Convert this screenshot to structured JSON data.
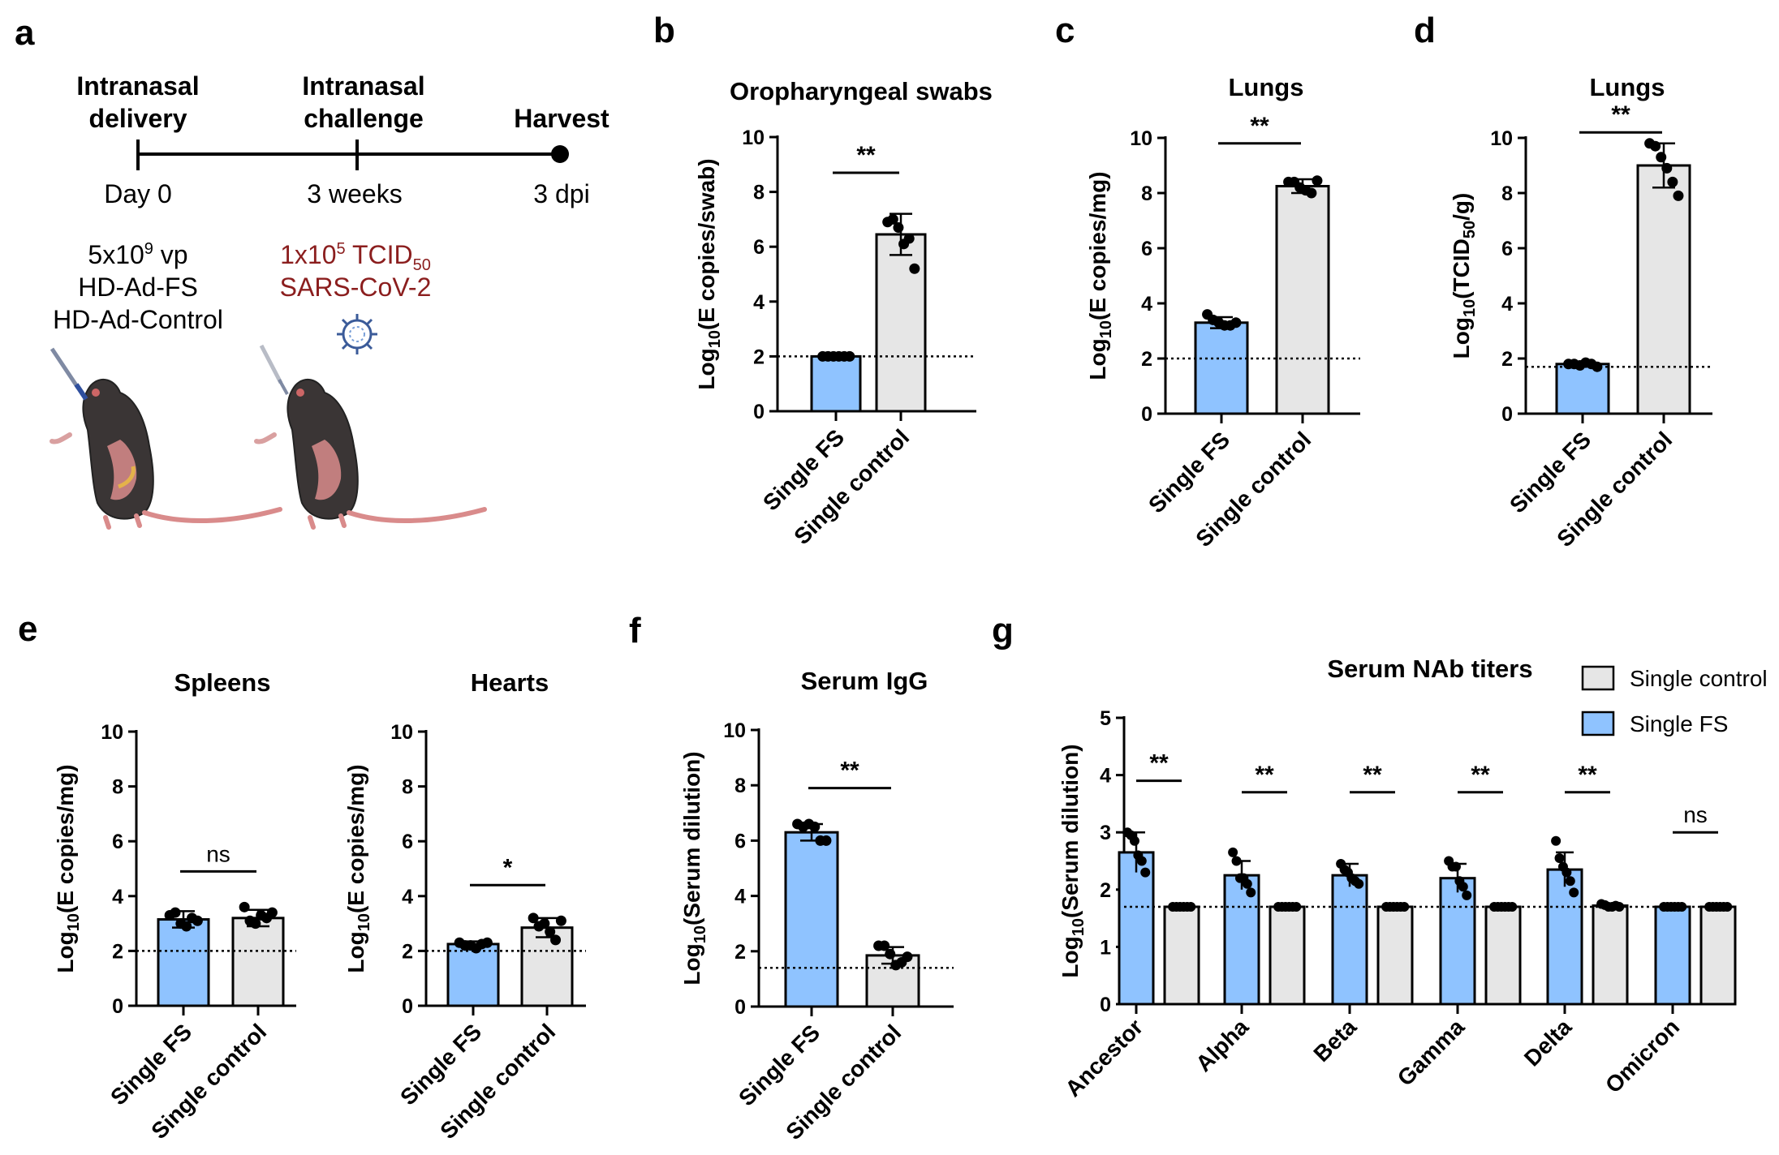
{
  "colors": {
    "fs": "#8fc3ff",
    "control": "#e6e6e6",
    "stroke": "#000000",
    "challenge": "#8b1e1e",
    "virus": "#3b5b99"
  },
  "panel_a": {
    "label": "a",
    "timeline": [
      {
        "top1": "Intranasal",
        "top2": "delivery",
        "time": "Day 0"
      },
      {
        "top1": "Intranasal",
        "top2": "challenge",
        "time": "3 weeks"
      },
      {
        "top1": "",
        "top2": "Harvest",
        "time": "3 dpi"
      }
    ],
    "delivery_lines": [
      {
        "pre": "5x10",
        "sup": "9",
        "post": " vp"
      },
      {
        "pre": "HD-Ad-FS",
        "sup": "",
        "post": ""
      },
      {
        "pre": "HD-Ad-Control",
        "sup": "",
        "post": ""
      }
    ],
    "challenge_lines": [
      {
        "pre": "1x10",
        "sup": "5",
        "post": " TCID",
        "sub": "50"
      },
      {
        "pre": "SARS-CoV-2",
        "sup": "",
        "post": "",
        "sub": ""
      }
    ],
    "icons": [
      "mouse-icon",
      "pipette-icon",
      "virus-icon"
    ]
  },
  "chart_data": [
    {
      "id": "b",
      "label": "b",
      "type": "bar",
      "title": "Oropharyngeal swabs",
      "ylabel": {
        "pre": "Log",
        "sub": "10",
        "post": "(E copies/swab)"
      },
      "ylim": [
        0,
        10
      ],
      "yticks": [
        0,
        2,
        4,
        6,
        8,
        10
      ],
      "categories": [
        "Single FS",
        "Single control"
      ],
      "values": [
        2.0,
        6.45
      ],
      "errors": [
        0.0,
        0.75
      ],
      "points": [
        [
          2,
          2,
          2,
          2,
          2,
          2
        ],
        [
          6.9,
          7.0,
          6.7,
          6.1,
          6.3,
          5.2
        ]
      ],
      "lod": 2.0,
      "annotations": [
        {
          "text": "**",
          "from": 0,
          "to": 1,
          "y": 8.7
        }
      ]
    },
    {
      "id": "c",
      "label": "c",
      "type": "bar",
      "title": "Lungs",
      "ylabel": {
        "pre": "Log",
        "sub": "10",
        "post": "(E copies/mg)"
      },
      "ylim": [
        0,
        10
      ],
      "yticks": [
        0,
        2,
        4,
        6,
        8,
        10
      ],
      "categories": [
        "Single FS",
        "Single control"
      ],
      "values": [
        3.3,
        8.25
      ],
      "errors": [
        0.2,
        0.25
      ],
      "points": [
        [
          3.6,
          3.4,
          3.3,
          3.2,
          3.2,
          3.3
        ],
        [
          8.4,
          8.4,
          8.2,
          8.1,
          8.0,
          8.45
        ]
      ],
      "lod": 2.0,
      "annotations": [
        {
          "text": "**",
          "from": 0,
          "to": 1,
          "y": 9.8
        }
      ]
    },
    {
      "id": "d",
      "label": "d",
      "type": "bar",
      "title": "Lungs",
      "ylabel": {
        "pre": "Log",
        "sub": "10",
        "post": "(TCID",
        "sub2": "50",
        "post2": "/g)"
      },
      "ylim": [
        0,
        10
      ],
      "yticks": [
        0,
        2,
        4,
        6,
        8,
        10
      ],
      "categories": [
        "Single FS",
        "Single control"
      ],
      "values": [
        1.8,
        9.0
      ],
      "errors": [
        0.08,
        0.8
      ],
      "points": [
        [
          1.8,
          1.8,
          1.75,
          1.85,
          1.8,
          1.7
        ],
        [
          9.8,
          9.7,
          9.3,
          8.9,
          8.4,
          7.9
        ]
      ],
      "lod": 1.7,
      "annotations": [
        {
          "text": "**",
          "from": 0,
          "to": 1,
          "y": 10.2
        }
      ]
    },
    {
      "id": "e1",
      "label": "e",
      "type": "bar",
      "title": "Spleens",
      "ylabel": {
        "pre": "Log",
        "sub": "10",
        "post": "(E copies/mg)"
      },
      "ylim": [
        0,
        10
      ],
      "yticks": [
        0,
        2,
        4,
        6,
        8,
        10
      ],
      "categories": [
        "Single FS",
        "Single control"
      ],
      "values": [
        3.15,
        3.2
      ],
      "errors": [
        0.3,
        0.3
      ],
      "points": [
        [
          3.3,
          3.4,
          3.0,
          2.9,
          3.2,
          3.1
        ],
        [
          3.6,
          3.1,
          3.0,
          3.3,
          3.2,
          3.4
        ]
      ],
      "lod": 2.0,
      "annotations": [
        {
          "text": "ns",
          "from": 0,
          "to": 1,
          "y": 4.9
        }
      ]
    },
    {
      "id": "e2",
      "label": "",
      "type": "bar",
      "title": "Hearts",
      "ylabel": {
        "pre": "Log",
        "sub": "10",
        "post": "(E copies/mg)"
      },
      "ylim": [
        0,
        10
      ],
      "yticks": [
        0,
        2,
        4,
        6,
        8,
        10
      ],
      "categories": [
        "Single FS",
        "Single control"
      ],
      "values": [
        2.25,
        2.85
      ],
      "errors": [
        0.1,
        0.35
      ],
      "points": [
        [
          2.3,
          2.2,
          2.2,
          2.1,
          2.25,
          2.3
        ],
        [
          3.2,
          2.9,
          3.0,
          2.7,
          2.4,
          3.1
        ]
      ],
      "lod": 2.0,
      "annotations": [
        {
          "text": "*",
          "from": 0,
          "to": 1,
          "y": 4.4
        }
      ]
    },
    {
      "id": "f",
      "label": "f",
      "type": "bar",
      "title": "Serum IgG",
      "ylabel": {
        "pre": "Log",
        "sub": "10",
        "post": "(Serum dilution)"
      },
      "ylim": [
        0,
        10
      ],
      "yticks": [
        0,
        2,
        4,
        6,
        8,
        10
      ],
      "categories": [
        "Single FS",
        "Single control"
      ],
      "values": [
        6.3,
        1.85
      ],
      "errors": [
        0.3,
        0.3
      ],
      "points": [
        [
          6.6,
          6.5,
          6.6,
          6.5,
          6.0,
          6.0
        ],
        [
          2.2,
          2.2,
          1.9,
          1.5,
          1.6,
          1.8
        ]
      ],
      "lod": 1.4,
      "annotations": [
        {
          "text": "**",
          "from": 0,
          "to": 1,
          "y": 7.9
        }
      ]
    },
    {
      "id": "g",
      "label": "g",
      "type": "grouped-bar",
      "title": "Serum NAb titers",
      "ylabel": {
        "pre": "Log",
        "sub": "10",
        "post": "(Serum dilution)"
      },
      "ylim": [
        0,
        5
      ],
      "yticks": [
        0,
        1,
        2,
        3,
        4,
        5
      ],
      "categories": [
        "Ancestor",
        "Alpha",
        "Beta",
        "Gamma",
        "Delta",
        "Omicron"
      ],
      "legend": {
        "position": "top-right",
        "entries": [
          {
            "name": "Single control",
            "key": "control"
          },
          {
            "name": "Single FS",
            "key": "fs"
          }
        ]
      },
      "series": [
        {
          "name": "Single FS",
          "key": "fs",
          "values": [
            2.65,
            2.25,
            2.25,
            2.2,
            2.35,
            1.7
          ],
          "errors": [
            0.35,
            0.25,
            0.2,
            0.25,
            0.3,
            0.0
          ],
          "points": [
            [
              3.0,
              2.95,
              2.85,
              2.6,
              2.5,
              2.3
            ],
            [
              2.65,
              2.5,
              2.2,
              2.2,
              2.1,
              1.95
            ],
            [
              2.45,
              2.35,
              2.3,
              2.2,
              2.15,
              2.1
            ],
            [
              2.5,
              2.4,
              2.4,
              2.15,
              2.05,
              1.9
            ],
            [
              2.85,
              2.55,
              2.4,
              2.3,
              2.15,
              1.95
            ],
            [
              1.7,
              1.7,
              1.7,
              1.7,
              1.7,
              1.7
            ]
          ]
        },
        {
          "name": "Single control",
          "key": "control",
          "values": [
            1.7,
            1.7,
            1.7,
            1.7,
            1.72,
            1.7
          ],
          "errors": [
            0,
            0,
            0,
            0,
            0,
            0
          ],
          "points": [
            [
              1.7,
              1.7,
              1.7,
              1.7,
              1.7,
              1.7
            ],
            [
              1.7,
              1.7,
              1.7,
              1.7,
              1.7,
              1.7
            ],
            [
              1.7,
              1.7,
              1.7,
              1.7,
              1.7,
              1.7
            ],
            [
              1.7,
              1.7,
              1.7,
              1.7,
              1.7,
              1.7
            ],
            [
              1.75,
              1.73,
              1.7,
              1.7,
              1.72,
              1.7
            ],
            [
              1.7,
              1.7,
              1.7,
              1.7,
              1.7,
              1.7
            ]
          ]
        }
      ],
      "lod": 1.7,
      "annotations": [
        {
          "text": "**",
          "group": 0,
          "y": 3.9
        },
        {
          "text": "**",
          "group": 1,
          "y": 3.7
        },
        {
          "text": "**",
          "group": 2,
          "y": 3.7
        },
        {
          "text": "**",
          "group": 3,
          "y": 3.7
        },
        {
          "text": "**",
          "group": 4,
          "y": 3.7
        },
        {
          "text": "ns",
          "group": 5,
          "y": 3.0
        }
      ]
    }
  ]
}
